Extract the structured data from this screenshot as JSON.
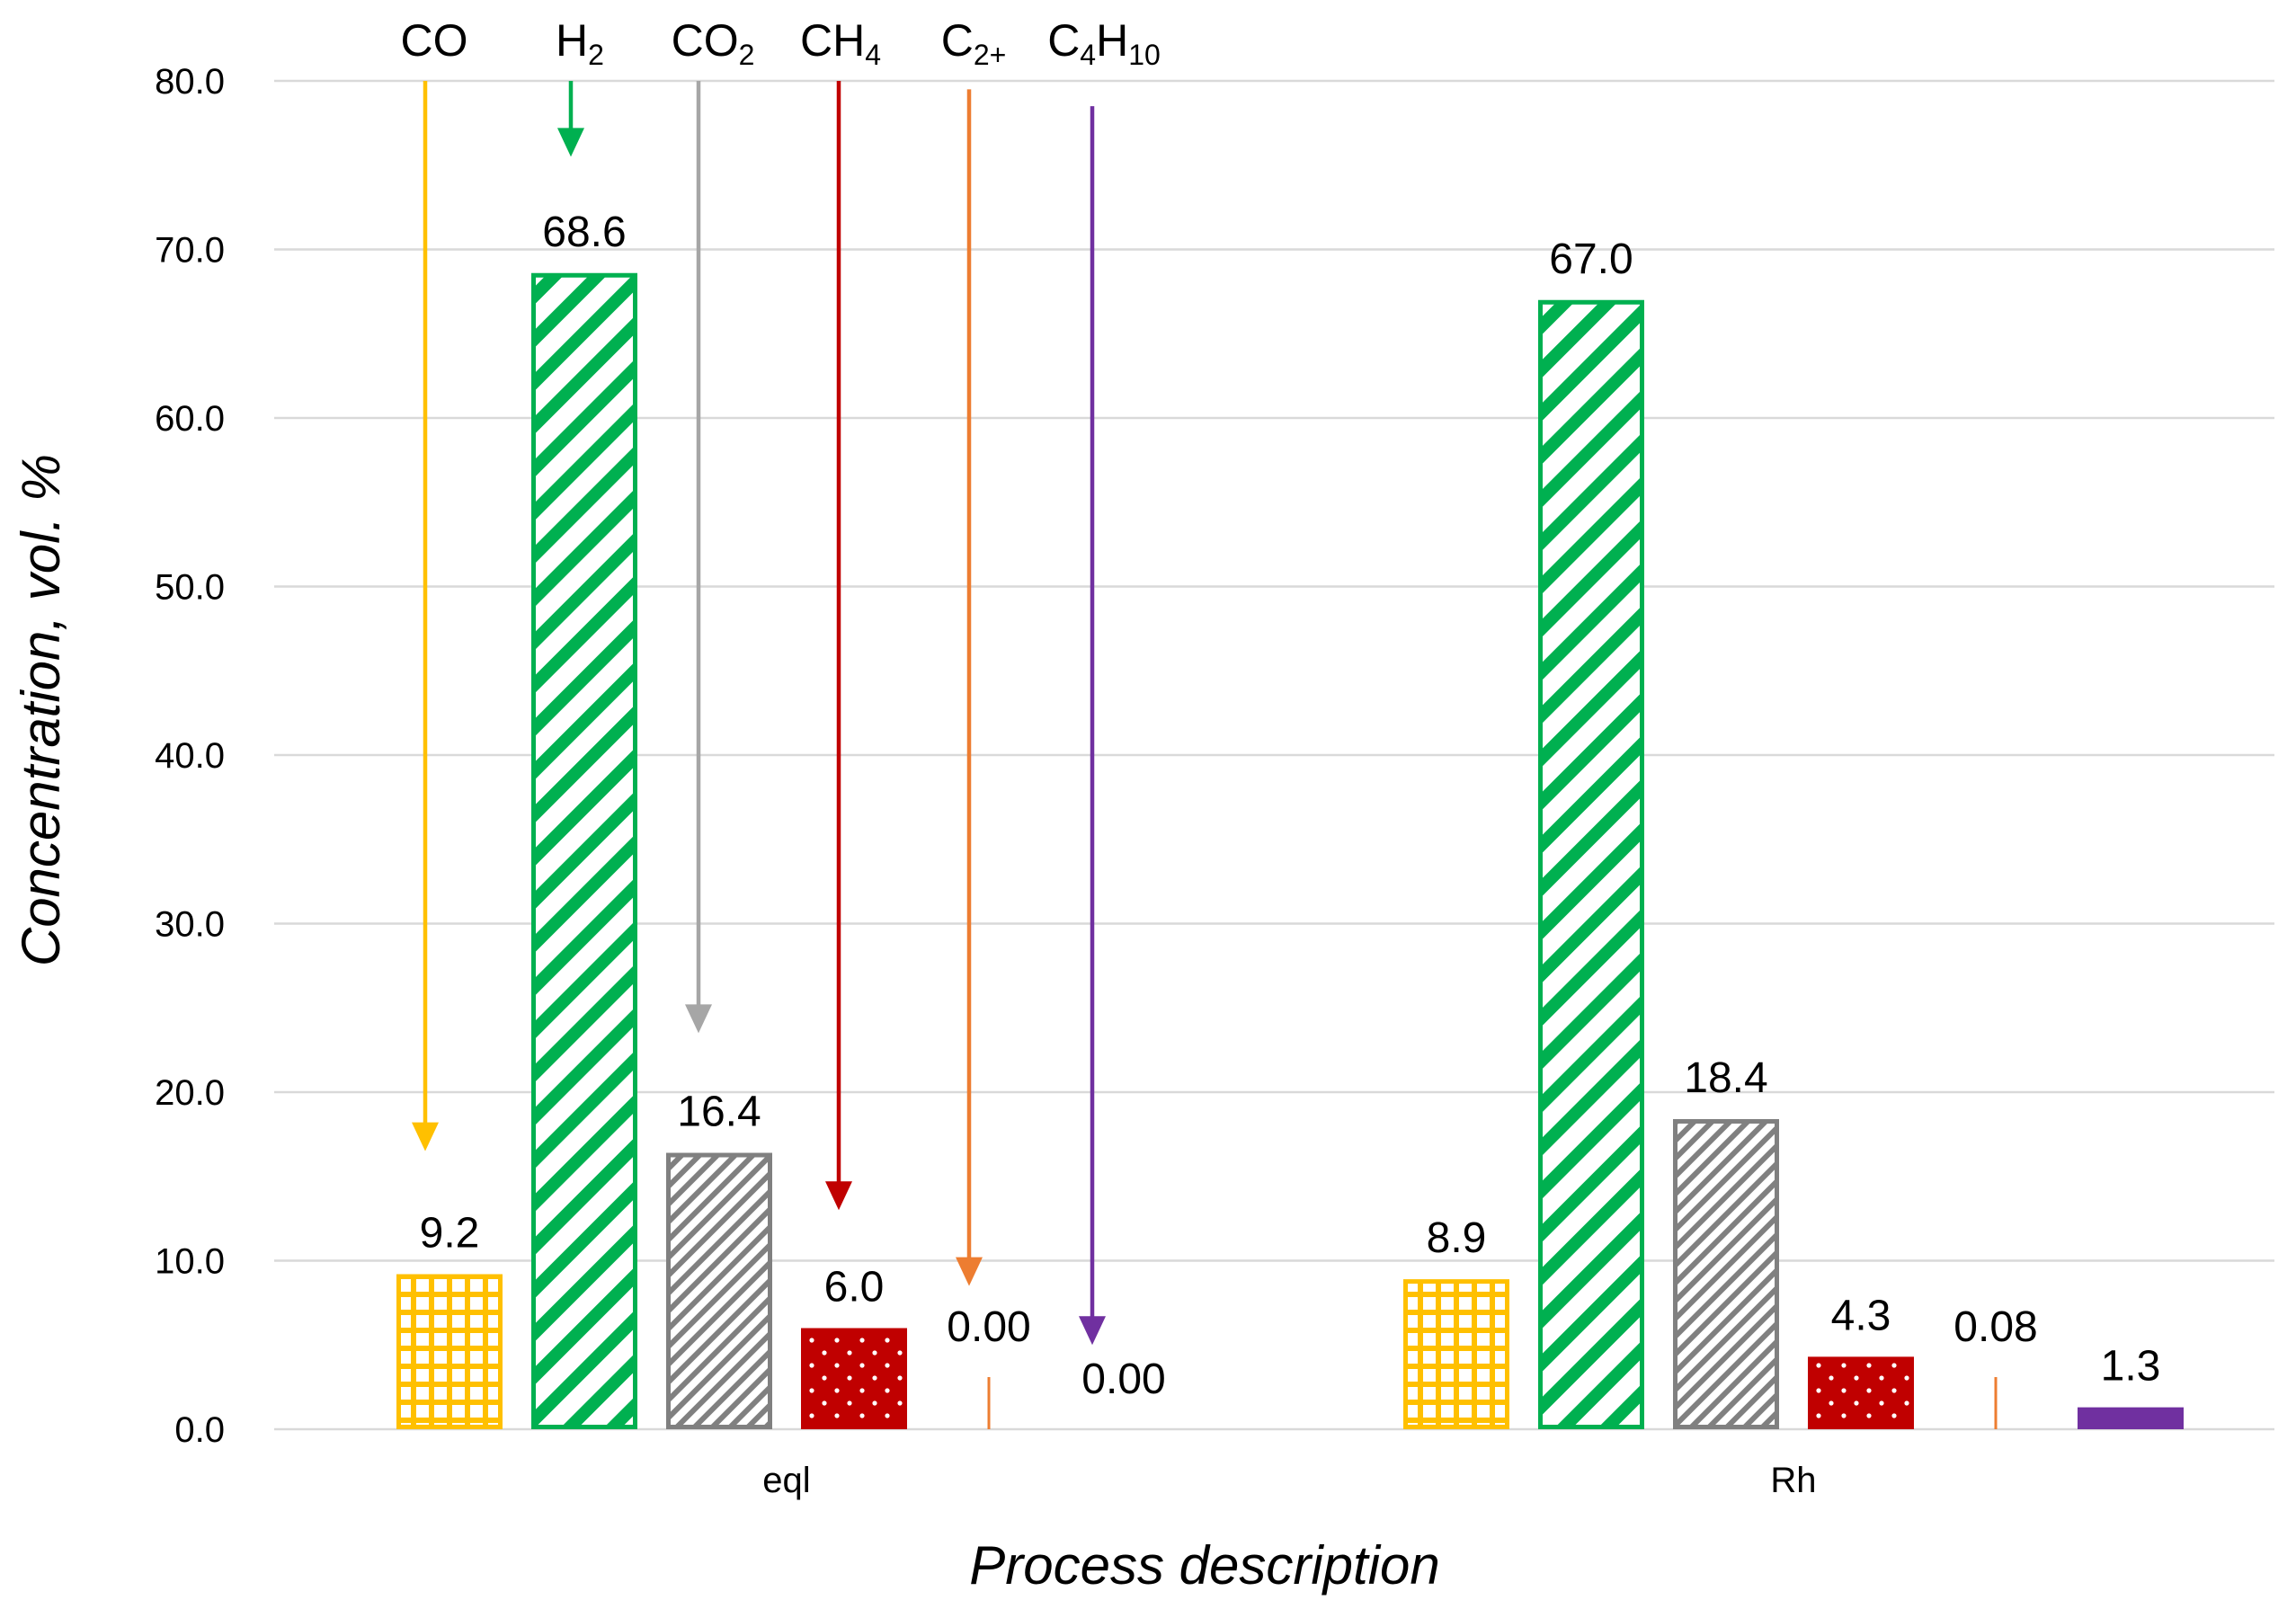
{
  "chart_data": {
    "type": "bar",
    "xlabel": "Process description",
    "ylabel": "Concentration, vol. %",
    "ylim": [
      0,
      80
    ],
    "ytick_step": 10,
    "ytick_labels": [
      "0.0",
      "10.0",
      "20.0",
      "30.0",
      "40.0",
      "50.0",
      "60.0",
      "70.0",
      "80.0"
    ],
    "grid": true,
    "categories": [
      "eql",
      "Rh"
    ],
    "series": [
      {
        "name": "CO",
        "label_main": "CO",
        "label_sub": "",
        "label_tail": "",
        "color": "#FFC000",
        "pattern": "grid",
        "values": [
          9.2,
          8.9
        ],
        "labels": [
          "9.2",
          "8.9"
        ]
      },
      {
        "name": "H2",
        "label_main": "H",
        "label_sub": "2",
        "label_tail": "",
        "color": "#00B050",
        "pattern": "wide-diagonal",
        "values": [
          68.6,
          67.0
        ],
        "labels": [
          "68.6",
          "67.0"
        ]
      },
      {
        "name": "CO2",
        "label_main": "CO",
        "label_sub": "2",
        "label_tail": "",
        "color": "#808080",
        "pattern": "narrow-diagonal",
        "values": [
          16.4,
          18.4
        ],
        "labels": [
          "16.4",
          "18.4"
        ]
      },
      {
        "name": "CH4",
        "label_main": "CH",
        "label_sub": "4",
        "label_tail": "",
        "color": "#C00000",
        "pattern": "dots",
        "values": [
          6.0,
          4.3
        ],
        "labels": [
          "6.0",
          "4.3"
        ]
      },
      {
        "name": "C2+",
        "label_main": "C",
        "label_sub": "2+",
        "label_tail": "",
        "color": "#ED7D31",
        "pattern": "solid",
        "values": [
          0.0,
          0.08
        ],
        "labels": [
          "0.00",
          "0.08"
        ]
      },
      {
        "name": "C4H10",
        "label_main": "C",
        "label_sub": "4",
        "label_tail": "H",
        "label_sub2": "10",
        "color": "#7030A0",
        "pattern": "solid",
        "values": [
          0.0,
          1.3
        ],
        "labels": [
          "0.00",
          "1.3"
        ]
      }
    ],
    "annotation_arrows": [
      {
        "series": "CO",
        "color": "#FFC000",
        "from_value": 80,
        "to_value": 16.5
      },
      {
        "series": "H2",
        "color": "#00B050",
        "from_value": 80,
        "to_value": 75.5
      },
      {
        "series": "CO2",
        "color": "#A6A6A6",
        "from_value": 80,
        "to_value": 23.5
      },
      {
        "series": "CH4",
        "color": "#C00000",
        "from_value": 80,
        "to_value": 13
      },
      {
        "series": "C2+",
        "color": "#ED7D31",
        "from_value": 79.5,
        "to_value": 8.5
      },
      {
        "series": "C4H10",
        "color": "#7030A0",
        "from_value": 78.5,
        "to_value": 5
      }
    ]
  }
}
